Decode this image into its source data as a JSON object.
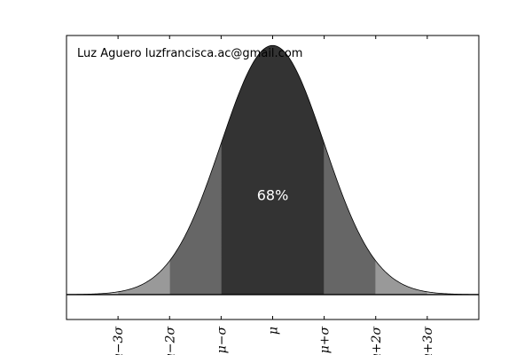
{
  "chart_data": {
    "type": "area",
    "title": "",
    "xlabel": "",
    "ylabel": "",
    "distribution": "normal",
    "xlim": [
      -4,
      4
    ],
    "ylim": [
      -0.5,
      5.2
    ],
    "curve": {
      "mean": 0,
      "sd": 1,
      "peak": 5,
      "color": "#000000"
    },
    "bands": [
      {
        "from": -1,
        "to": 1,
        "color": "#333333",
        "label": "68%"
      },
      {
        "from": -2,
        "to": -1,
        "color": "#666666"
      },
      {
        "from": 1,
        "to": 2,
        "color": "#666666"
      },
      {
        "from": -3,
        "to": -2,
        "color": "#999999"
      },
      {
        "from": 2,
        "to": 3,
        "color": "#999999"
      },
      {
        "from": -4,
        "to": -3,
        "color": "#cccccc"
      },
      {
        "from": 3,
        "to": 4,
        "color": "#cccccc"
      }
    ],
    "center_label": "68%",
    "annotation": "Luz Aguero luzfrancisca.ac@gmail.com",
    "xticks": [
      {
        "value": -3,
        "label": "μ−3σ"
      },
      {
        "value": -2,
        "label": "μ−2σ"
      },
      {
        "value": -1,
        "label": "μ−σ"
      },
      {
        "value": 0,
        "label": "μ"
      },
      {
        "value": 1,
        "label": "μ+σ"
      },
      {
        "value": 2,
        "label": "μ+2σ"
      },
      {
        "value": 3,
        "label": "μ+3σ"
      }
    ],
    "grid": false,
    "baseline": 0
  }
}
